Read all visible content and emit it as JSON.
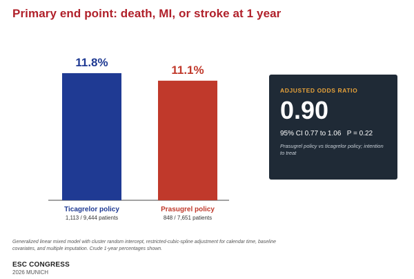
{
  "chart_data": {
    "type": "bar",
    "title": "Primary end point: death, MI, or stroke at 1 year",
    "categories": [
      "Ticagrelor policy",
      "Prasugrel policy"
    ],
    "values": [
      11.8,
      11.1
    ],
    "value_labels": [
      "11.8%",
      "11.1%"
    ],
    "patients": [
      "1,113 / 9,444 patients",
      "848 / 7,651 patients"
    ],
    "colors": [
      "#1f3a93",
      "#c0392b"
    ],
    "xlabel": "",
    "ylabel": "",
    "ylim": [
      0,
      12.5
    ],
    "grid": false,
    "legend": "none"
  },
  "odds_ratio": {
    "label": "ADJUSTED ODDS RATIO",
    "value": "0.90",
    "ci": "95% CI 0.77 to 1.06",
    "p": "P = 0.22",
    "note": "Prasugrel policy vs ticagrelor policy; intention to treat"
  },
  "footnote": "Generalized linear mixed model with cluster random intercept, restricted-cubic-spline adjustment for calendar time, baseline covariates, and multiple imputation. Crude 1-year percentages shown.",
  "brand": {
    "name": "ESC CONGRESS",
    "sub": "2026 MUNICH"
  },
  "colors": {
    "title": "#b0202a",
    "panel_bg": "#1f2a36",
    "panel_label": "#e8a33a"
  }
}
